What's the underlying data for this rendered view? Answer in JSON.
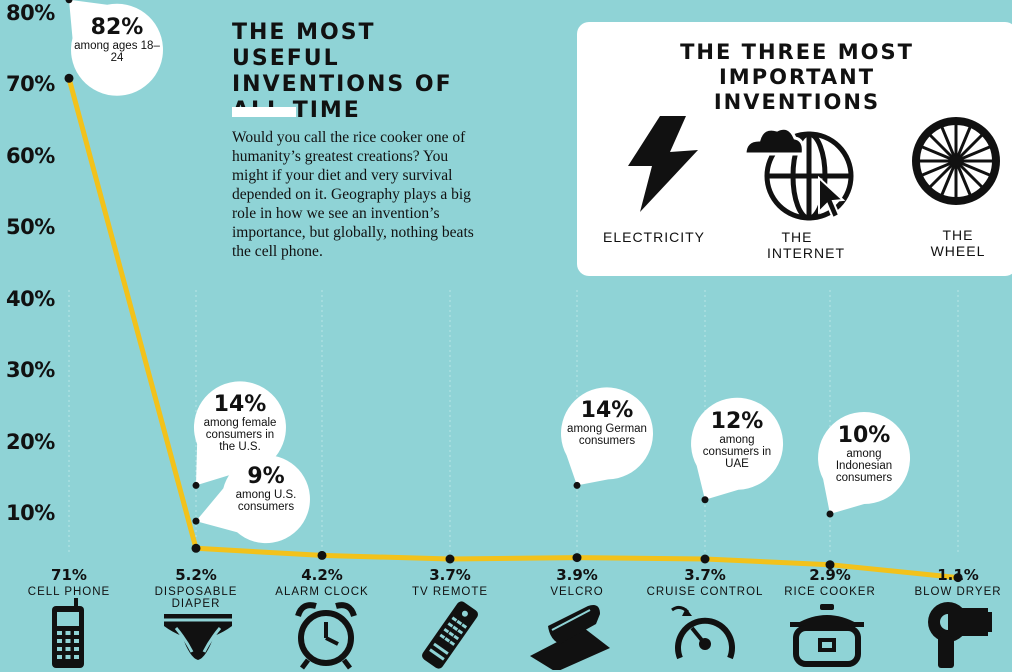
{
  "title": "THE MOST USEFUL INVENTIONS OF ALL TIME",
  "intro": "Would you call the rice cooker one of humanity’s greatest creations? You might if your diet and very survival depended on it. Geography plays a big role in how we see an invention’s importance, but globally, nothing beats the cell phone.",
  "top_three": {
    "title": "THE THREE MOST IMPORTANT INVENTIONS",
    "items": [
      {
        "label": "ELECTRICITY",
        "icon": "lightning-icon"
      },
      {
        "label": "THE INTERNET",
        "icon": "globe-cursor-icon"
      },
      {
        "label": "THE WHEEL",
        "icon": "wheel-icon"
      }
    ]
  },
  "colors": {
    "background": "#8fd3d6",
    "line": "#f2c21b",
    "box": "#ffffff"
  },
  "chart_data": {
    "type": "line",
    "categories": [
      "CELL PHONE",
      "DISPOSABLE DIAPER",
      "ALARM CLOCK",
      "TV REMOTE",
      "VELCRO",
      "CRUISE CONTROL",
      "RICE COOKER",
      "BLOW DRYER"
    ],
    "values": [
      71,
      5.2,
      4.2,
      3.7,
      3.9,
      3.7,
      2.9,
      1.1
    ],
    "value_labels": [
      "71%",
      "5.2%",
      "4.2%",
      "3.7%",
      "3.9%",
      "3.7%",
      "2.9%",
      "1.1%"
    ],
    "icons": [
      "cellphone-icon",
      "diaper-icon",
      "alarm-clock-icon",
      "tv-remote-icon",
      "velcro-icon",
      "cruise-control-icon",
      "rice-cooker-icon",
      "blow-dryer-icon"
    ],
    "yticks": [
      "80%",
      "70%",
      "60%",
      "50%",
      "40%",
      "30%",
      "20%",
      "10%"
    ],
    "ytick_values": [
      80,
      70,
      60,
      50,
      40,
      30,
      20,
      10
    ],
    "ylim": [
      0,
      82
    ],
    "annotations": [
      {
        "category": "CELL PHONE",
        "value": 82,
        "big": "82%",
        "small": "among ages 18–24"
      },
      {
        "category": "DISPOSABLE DIAPER",
        "value": 14,
        "big": "14%",
        "small": "among female consumers in the U.S."
      },
      {
        "category": "DISPOSABLE DIAPER",
        "value": 9,
        "big": "9%",
        "small": "among U.S. consumers"
      },
      {
        "category": "VELCRO",
        "value": 14,
        "big": "14%",
        "small": "among German consumers"
      },
      {
        "category": "CRUISE CONTROL",
        "value": 12,
        "big": "12%",
        "small": "among consumers in UAE"
      },
      {
        "category": "RICE COOKER",
        "value": 10,
        "big": "10%",
        "small": "among Indonesian consumers"
      }
    ]
  }
}
